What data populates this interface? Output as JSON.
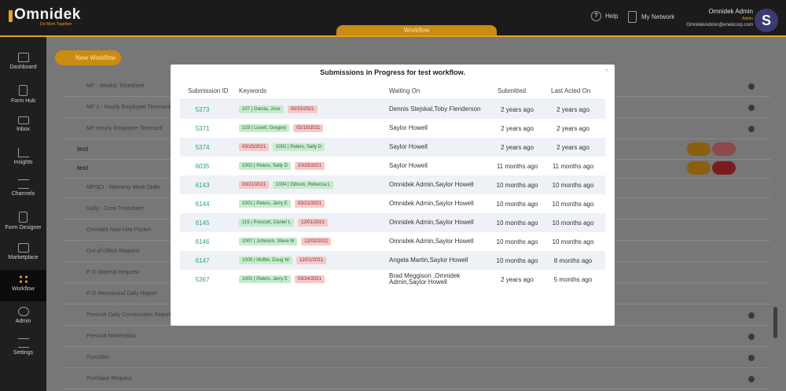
{
  "brand": {
    "name": "Omnidek",
    "tagline": "Do Work Together"
  },
  "header": {
    "active_tab": "Workflow",
    "help_label": "Help",
    "network_label": "My Network",
    "user_name": "Omnidek Admin",
    "user_role": "Admin",
    "user_email": "OmnidekAdmin@enekcorp.com",
    "avatar_initial": "S"
  },
  "sidebar": {
    "items": [
      {
        "label": "Dashboard",
        "icon": "home-icon"
      },
      {
        "label": "Form Hub",
        "icon": "document-icon"
      },
      {
        "label": "Inbox",
        "icon": "mail-icon"
      },
      {
        "label": "Insights",
        "icon": "chart-icon"
      },
      {
        "label": "Channels",
        "icon": "list-icon"
      },
      {
        "label": "Form Designer",
        "icon": "form-icon"
      },
      {
        "label": "Marketplace",
        "icon": "store-icon"
      },
      {
        "label": "Workflow",
        "icon": "workflow-icon",
        "active": true
      },
      {
        "label": "Admin",
        "icon": "users-icon"
      },
      {
        "label": "Settings",
        "icon": "settings-icon"
      }
    ]
  },
  "main": {
    "new_workflow_label": "New Workflow",
    "rows": [
      {
        "label": "MP - Weekly Timesheet",
        "kind": "sub"
      },
      {
        "label": "MP 1 - Hourly Employee Timecard",
        "kind": "sub"
      },
      {
        "label": "MP Hourly Employee Timecard",
        "kind": "sub"
      },
      {
        "label": "test",
        "kind": "grp"
      },
      {
        "label": "test",
        "kind": "grp"
      },
      {
        "label": "MPSCI - Warranty Work Order",
        "kind": "sub"
      },
      {
        "label": "Daily - Crew Timesheet",
        "kind": "sub"
      },
      {
        "label": "Omnidek New Hire Packet",
        "kind": "sub"
      },
      {
        "label": "Out of Office Request",
        "kind": "sub"
      },
      {
        "label": "P O Material Request",
        "kind": "sub"
      },
      {
        "label": "P O Mechanical Daily Report",
        "kind": "sub"
      },
      {
        "label": "Prescott Daily Construction Report",
        "kind": "sub"
      },
      {
        "label": "Prescott Mimeraldus",
        "kind": "sub"
      },
      {
        "label": "Punchlist",
        "kind": "sub"
      },
      {
        "label": "Purchase Request",
        "kind": "sub"
      }
    ]
  },
  "modal": {
    "title": "Submissions in Progress for test workflow.",
    "close_label": "×",
    "columns": [
      "Submission ID",
      "Keywords",
      "Waiting On",
      "Submitted",
      "Last Acted On"
    ],
    "rows": [
      {
        "id": "5373",
        "tags": [
          {
            "text": "107 | Garcia, Jose",
            "color": "green"
          },
          {
            "text": "03/15/2021",
            "color": "red"
          }
        ],
        "waiting": "Dennis Stejskal,Toby Flenderson",
        "submitted": "2 years ago",
        "last": "2 years ago"
      },
      {
        "id": "5371",
        "tags": [
          {
            "text": "103 | Lovett, Gregory",
            "color": "green"
          },
          {
            "text": "02/15/2021",
            "color": "red"
          }
        ],
        "waiting": "Saylor Howell",
        "submitted": "2 years ago",
        "last": "2 years ago"
      },
      {
        "id": "5374",
        "tags": [
          {
            "text": "03/15/2021",
            "color": "red"
          },
          {
            "text": "1002 | Peters, Sally D",
            "color": "green"
          }
        ],
        "waiting": "Saylor Howell",
        "submitted": "2 years ago",
        "last": "2 years ago"
      },
      {
        "id": "6035",
        "tags": [
          {
            "text": "1002 | Peters, Sally D",
            "color": "green"
          },
          {
            "text": "10/25/2021",
            "color": "red"
          }
        ],
        "waiting": "Saylor Howell",
        "submitted": "11 months ago",
        "last": "11 months ago"
      },
      {
        "id": "6143",
        "tags": [
          {
            "text": "03/21/2021",
            "color": "red"
          },
          {
            "text": "1004 | Gibson, Rebecca L",
            "color": "green"
          }
        ],
        "waiting": "Omnidek Admin,Saylor Howell",
        "submitted": "10 months ago",
        "last": "10 months ago"
      },
      {
        "id": "6144",
        "tags": [
          {
            "text": "1001 | Peters, Jerry E",
            "color": "green"
          },
          {
            "text": "03/21/2021",
            "color": "red"
          }
        ],
        "waiting": "Omnidek Admin,Saylor Howell",
        "submitted": "10 months ago",
        "last": "10 months ago"
      },
      {
        "id": "6145",
        "tags": [
          {
            "text": "115 | Prescott, Daniel L",
            "color": "green"
          },
          {
            "text": "12/01/2021",
            "color": "red"
          }
        ],
        "waiting": "Omnidek Admin,Saylor Howell",
        "submitted": "10 months ago",
        "last": "10 months ago"
      },
      {
        "id": "6146",
        "tags": [
          {
            "text": "1007 | Johnson, Steve M",
            "color": "green"
          },
          {
            "text": "12/02/2021",
            "color": "red"
          }
        ],
        "waiting": "Omnidek Admin,Saylor Howell",
        "submitted": "10 months ago",
        "last": "10 months ago"
      },
      {
        "id": "6147",
        "tags": [
          {
            "text": "1005 | Moffet, Doug W",
            "color": "green"
          },
          {
            "text": "12/01/2021",
            "color": "red"
          }
        ],
        "waiting": "Angela Martin,Saylor Howell",
        "submitted": "10 months ago",
        "last": "8 months ago"
      },
      {
        "id": "5367",
        "tags": [
          {
            "text": "1001 | Peters, Jerry E",
            "color": "green"
          },
          {
            "text": "03/24/2021",
            "color": "red"
          }
        ],
        "waiting": "Brad Meggison ,Omnidek Admin,Saylor Howell",
        "submitted": "2 years ago",
        "last": "5 months ago"
      }
    ]
  },
  "colors": {
    "accent": "#e6a01a",
    "link": "#2aa37c",
    "tag_green": "#c6eccd",
    "tag_red": "#f5c9c9"
  }
}
